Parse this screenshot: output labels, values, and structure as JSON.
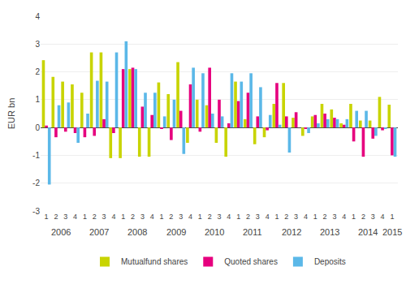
{
  "chart_data": {
    "type": "bar",
    "ylabel": "EUR bn",
    "categories": [
      "1",
      "2",
      "3",
      "4",
      "1",
      "2",
      "3",
      "4",
      "1",
      "2",
      "3",
      "4",
      "1",
      "2",
      "3",
      "4",
      "1",
      "2",
      "3",
      "4",
      "1",
      "2",
      "3",
      "4",
      "1",
      "2",
      "3",
      "4",
      "1",
      "2",
      "3",
      "4",
      "1",
      "2",
      "3",
      "4",
      "1"
    ],
    "annotations": [
      "2006",
      "2007",
      "2008",
      "2009",
      "2010",
      "2011",
      "2012",
      "2013",
      "2014",
      "2015"
    ],
    "series": [
      {
        "name": "Mutualfund shares",
        "color": "#c8d400",
        "values": [
          2.42,
          1.82,
          1.65,
          1.55,
          1.25,
          2.7,
          2.7,
          -1.1,
          -1.1,
          2.1,
          -1.05,
          -1.05,
          1.62,
          1.2,
          2.35,
          -0.55,
          1.0,
          0.8,
          -0.55,
          -1.05,
          1.65,
          0.3,
          -0.6,
          -0.35,
          0.85,
          1.6,
          0.35,
          -0.3,
          0.4,
          0.85,
          0.65,
          0.15,
          0.85,
          0.25,
          0.25,
          1.1,
          0.82
        ]
      },
      {
        "name": "Quoted shares",
        "color": "#e6007e",
        "values": [
          0.07,
          -0.35,
          -0.15,
          -0.2,
          -0.35,
          -0.3,
          0.3,
          -0.2,
          2.1,
          2.15,
          0.75,
          0.45,
          -0.04,
          -0.45,
          0.6,
          1.55,
          -0.15,
          2.15,
          1.0,
          0.15,
          0.95,
          1.25,
          0.4,
          -0.1,
          1.6,
          0.4,
          0.55,
          -0.05,
          0.45,
          0.5,
          0.35,
          0.1,
          -0.5,
          -1.05,
          -0.4,
          -0.1,
          -1.0
        ]
      },
      {
        "name": "Deposits",
        "color": "#5bb8e8",
        "values": [
          -2.05,
          0.8,
          0.9,
          -0.55,
          0.5,
          1.68,
          1.65,
          2.7,
          3.1,
          2.1,
          1.25,
          1.25,
          0.4,
          1.0,
          -0.95,
          2.15,
          1.95,
          0.5,
          0.4,
          1.95,
          1.65,
          1.95,
          1.45,
          0.45,
          0.1,
          -0.9,
          0.0,
          -0.2,
          0.15,
          0.3,
          0.3,
          0.3,
          0.6,
          0.6,
          -0.3,
          -0.05,
          -1.05
        ]
      }
    ],
    "ylim": [
      -3,
      4
    ],
    "yticks": [
      -3,
      -2,
      -1,
      0,
      1,
      2,
      3,
      4
    ],
    "grid": true,
    "legend": "bottom"
  }
}
